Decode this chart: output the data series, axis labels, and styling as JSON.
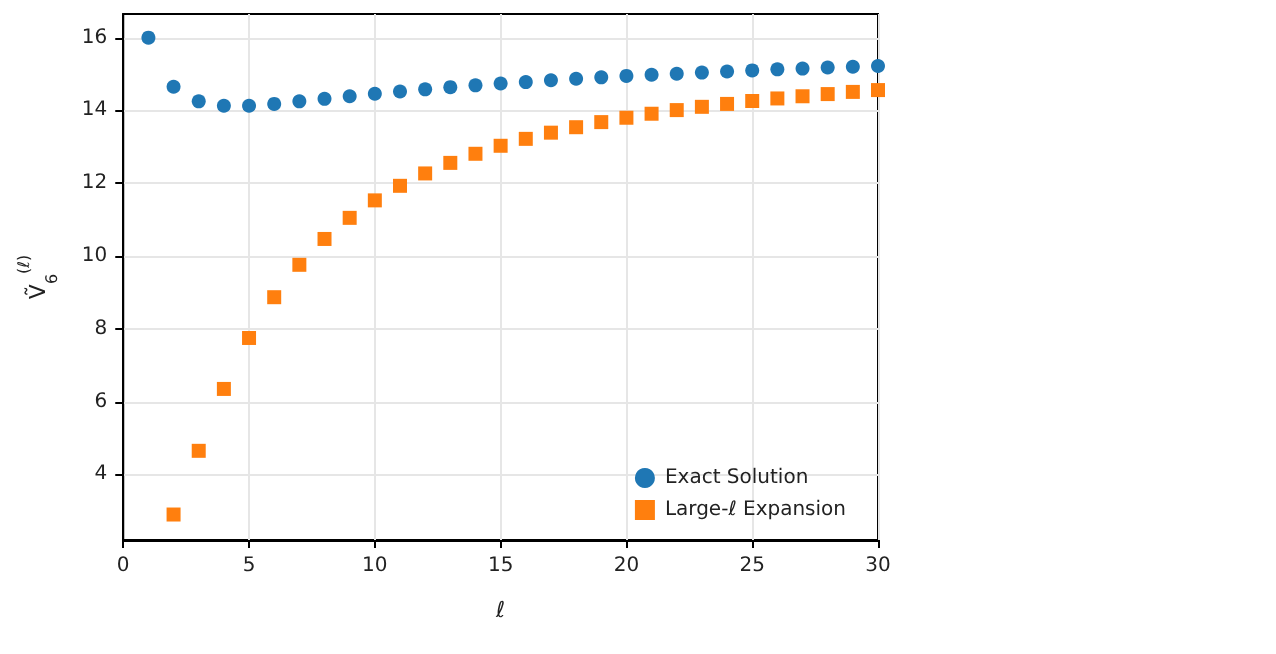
{
  "chart_data": {
    "type": "scatter",
    "xlabel": "ℓ",
    "ylabel": "Ṽ$_{6}$$^{(ℓ)}$",
    "xlim": [
      0,
      30
    ],
    "xticks": [
      0,
      5,
      10,
      15,
      20,
      25,
      30
    ],
    "ylim": [
      2.2,
      16.65
    ],
    "yticks": [
      4,
      6,
      8,
      10,
      12,
      14,
      16
    ],
    "grid": true,
    "legend": "bottom right",
    "series": [
      {
        "name": "Exact Solution",
        "color": "#1f77b4",
        "marker": "circle",
        "x": [
          1,
          2,
          3,
          4,
          5,
          6,
          7,
          8,
          9,
          10,
          11,
          12,
          13,
          14,
          15,
          16,
          17,
          18,
          19,
          20,
          21,
          22,
          23,
          24,
          25,
          26,
          27,
          28,
          29,
          30
        ],
        "values": [
          16.0,
          14.65,
          14.25,
          14.13,
          14.13,
          14.18,
          14.25,
          14.32,
          14.39,
          14.46,
          14.52,
          14.58,
          14.64,
          14.69,
          14.74,
          14.78,
          14.83,
          14.87,
          14.91,
          14.95,
          14.98,
          15.01,
          15.04,
          15.07,
          15.1,
          15.13,
          15.15,
          15.18,
          15.2,
          15.22
        ]
      },
      {
        "name": "Large-ℓ Expansion",
        "color": "#ff7f0e",
        "marker": "square",
        "x": [
          2,
          3,
          4,
          5,
          6,
          7,
          8,
          9,
          10,
          11,
          12,
          13,
          14,
          15,
          16,
          17,
          18,
          19,
          20,
          21,
          22,
          23,
          24,
          25,
          26,
          27,
          28,
          29,
          30
        ],
        "values": [
          2.9,
          4.65,
          6.35,
          7.75,
          8.87,
          9.76,
          10.47,
          11.05,
          11.53,
          11.93,
          12.27,
          12.56,
          12.81,
          13.03,
          13.22,
          13.39,
          13.54,
          13.68,
          13.8,
          13.91,
          14.01,
          14.1,
          14.18,
          14.26,
          14.33,
          14.39,
          14.45,
          14.51,
          14.56
        ]
      }
    ]
  }
}
